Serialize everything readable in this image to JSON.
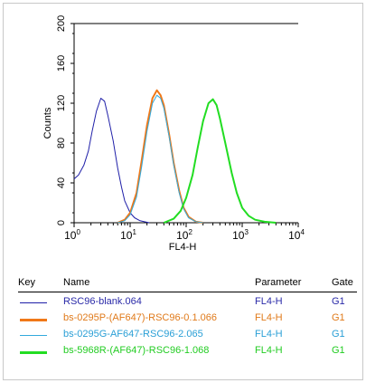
{
  "chart_data": {
    "type": "line",
    "xlabel": "FL4-H",
    "ylabel": "Counts",
    "x_scale": "log",
    "xlim": [
      1,
      10000
    ],
    "ylim": [
      0,
      200
    ],
    "x_ticks": [
      1,
      10,
      100,
      1000,
      10000
    ],
    "x_tick_labels": [
      {
        "base": "10",
        "exp": "0"
      },
      {
        "base": "10",
        "exp": "1"
      },
      {
        "base": "10",
        "exp": "2"
      },
      {
        "base": "10",
        "exp": "3"
      },
      {
        "base": "10",
        "exp": "4"
      }
    ],
    "y_ticks": [
      0,
      40,
      80,
      120,
      160,
      200
    ],
    "y_tick_labels": [
      "0",
      "40",
      "80",
      "120",
      "160",
      "200"
    ],
    "series": [
      {
        "name": "RSC96-blank.064",
        "color": "#1f1fa8",
        "x": [
          1,
          1.2,
          1.5,
          1.8,
          2.1,
          2.5,
          3,
          3.5,
          4,
          5,
          6,
          7,
          8,
          10,
          12,
          15,
          18,
          22
        ],
        "y": [
          44,
          48,
          58,
          72,
          92,
          112,
          125,
          122,
          108,
          82,
          55,
          36,
          22,
          10,
          5,
          2,
          1,
          0
        ]
      },
      {
        "name": "bs-0295P-(AF647)-RSC96-0.1.066",
        "color": "#f07818",
        "x": [
          6,
          8,
          10,
          13,
          16,
          20,
          25,
          30,
          35,
          40,
          50,
          60,
          75,
          90,
          110,
          150,
          200
        ],
        "y": [
          0,
          3,
          10,
          30,
          62,
          98,
          125,
          133,
          128,
          118,
          88,
          60,
          32,
          15,
          6,
          1,
          0
        ]
      },
      {
        "name": "bs-0295G-AF647-RSC96-2.065",
        "color": "#33aadd",
        "x": [
          6,
          8,
          10,
          13,
          16,
          20,
          25,
          30,
          35,
          40,
          50,
          60,
          75,
          90,
          110,
          150,
          200
        ],
        "y": [
          0,
          2,
          8,
          26,
          56,
          92,
          120,
          128,
          125,
          115,
          86,
          58,
          30,
          14,
          5,
          1,
          0
        ]
      },
      {
        "name": "bs-5968R-(AF647)-RSC96-1.068",
        "color": "#22dd22",
        "x": [
          40,
          60,
          80,
          100,
          130,
          160,
          200,
          250,
          300,
          350,
          400,
          500,
          650,
          800,
          1000,
          1300,
          1700,
          2500,
          4000
        ],
        "y": [
          0,
          4,
          12,
          25,
          48,
          75,
          102,
          120,
          124,
          118,
          105,
          80,
          50,
          30,
          15,
          7,
          3,
          1,
          0
        ]
      }
    ],
    "legend_headers": {
      "key": "Key",
      "name": "Name",
      "parameter": "Parameter",
      "gate": "Gate"
    },
    "legend_rows": [
      {
        "name": "RSC96-blank.064",
        "parameter": "FL4-H",
        "gate": "G1",
        "color": "#1f1fa8",
        "text_color": "#2a2aa8",
        "line_width": 1
      },
      {
        "name": "bs-0295P-(AF647)-RSC96-0.1.066",
        "parameter": "FL4-H",
        "gate": "G1",
        "color": "#f07818",
        "text_color": "#e07a1a",
        "line_width": 3
      },
      {
        "name": "bs-0295G-AF647-RSC96-2.065",
        "parameter": "FL4-H",
        "gate": "G1",
        "color": "#33aadd",
        "text_color": "#2a9fd6",
        "line_width": 1
      },
      {
        "name": "bs-5968R-(AF647)-RSC96-1.068",
        "parameter": "FL4-H",
        "gate": "G1",
        "color": "#22dd22",
        "text_color": "#22cc22",
        "line_width": 3
      }
    ]
  }
}
